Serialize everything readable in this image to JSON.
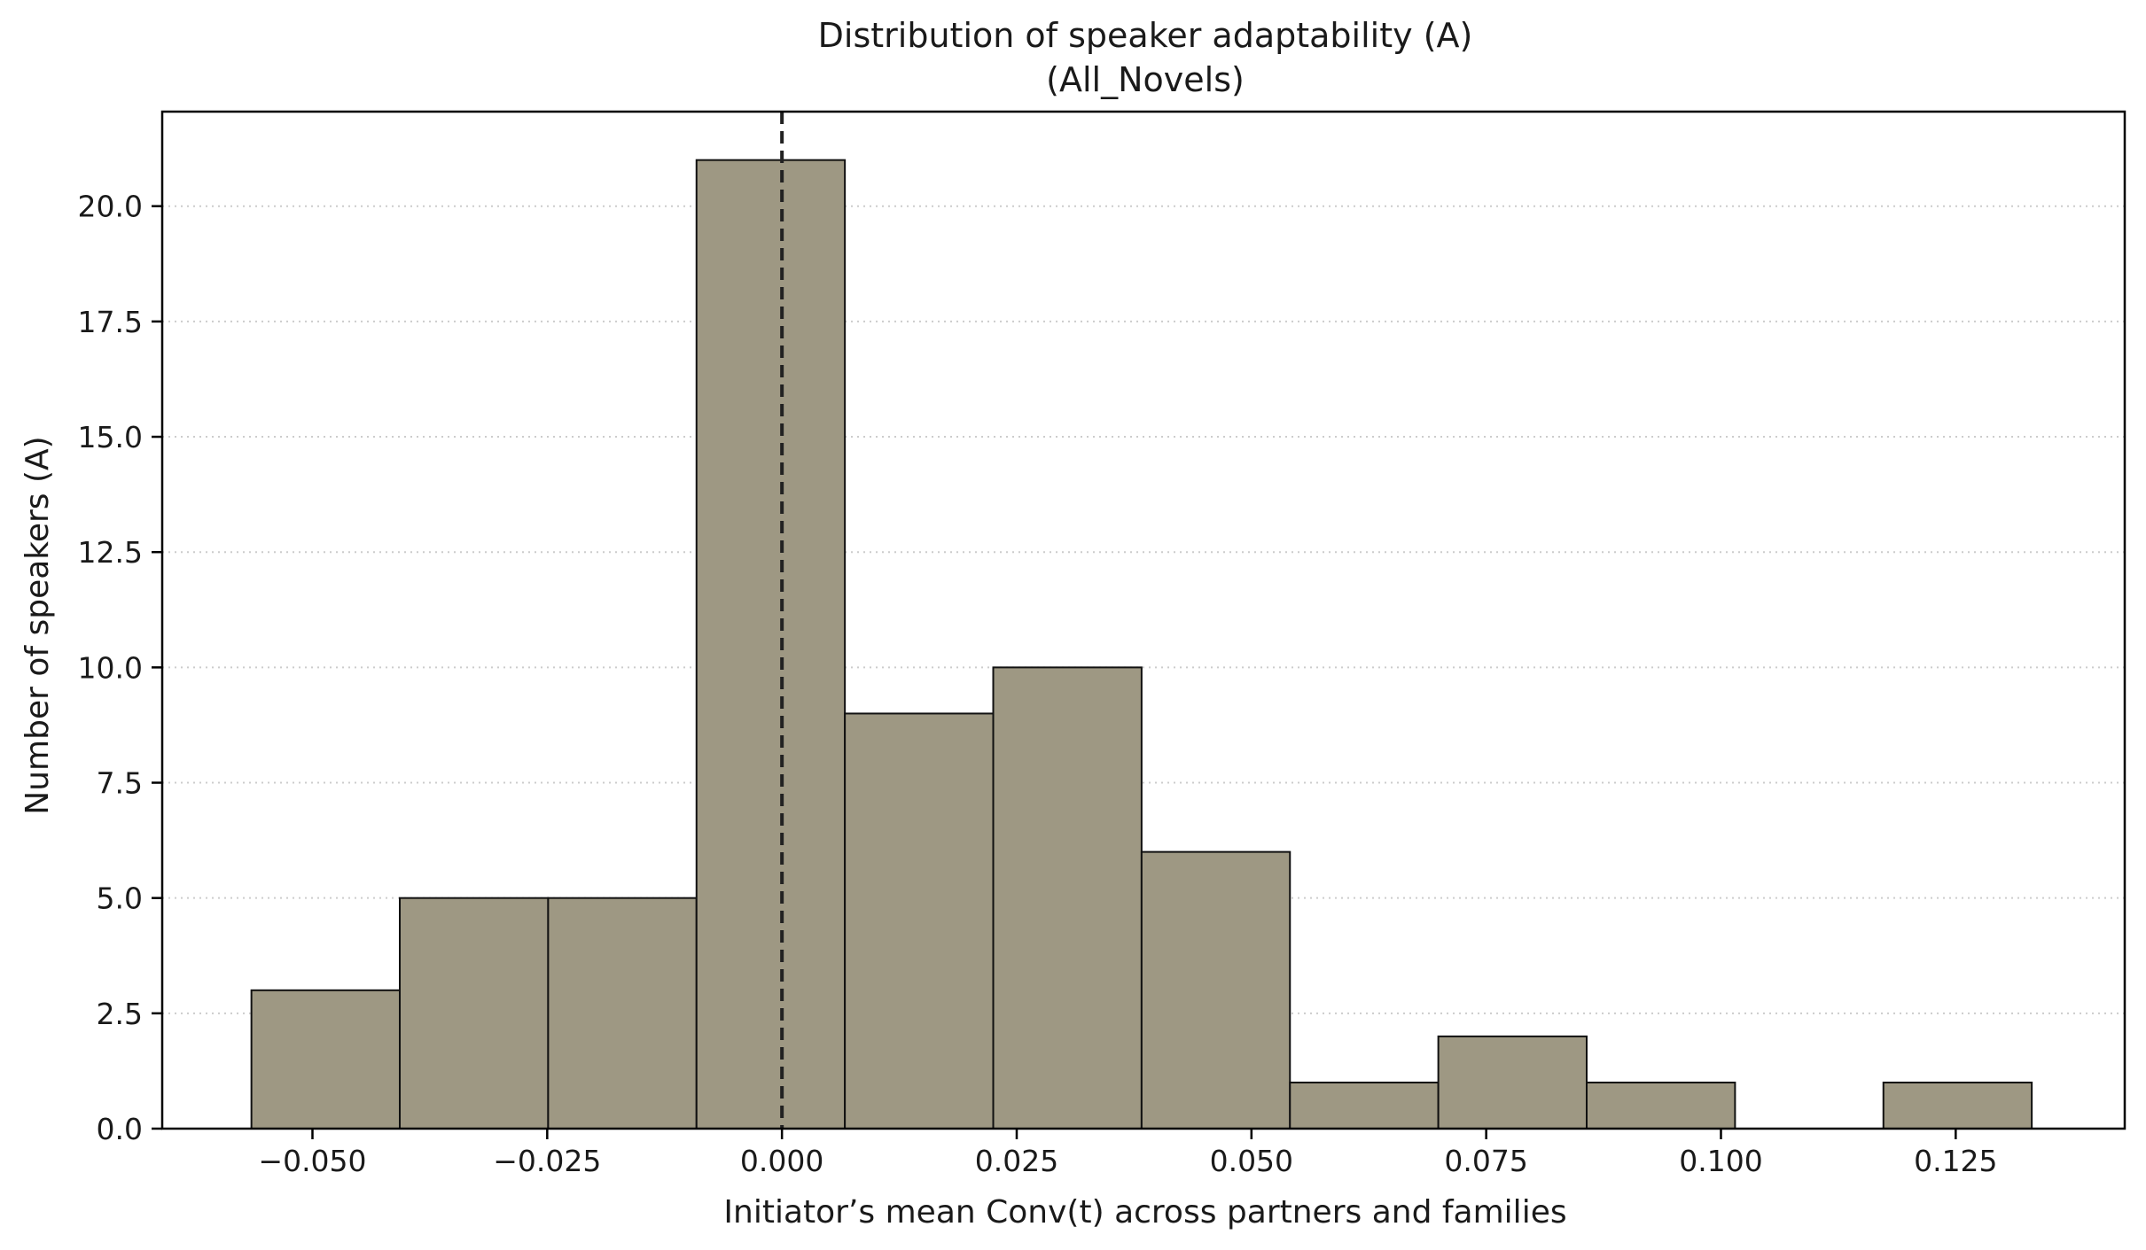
{
  "chart_data": {
    "type": "bar",
    "title": "Distribution of speaker adaptability (A)",
    "subtitle": "(All_Novels)",
    "xlabel": "Initiator’s mean Conv(t) across partners and families",
    "ylabel": "Number of speakers (A)",
    "xlim": [
      -0.066,
      0.143
    ],
    "ylim": [
      0,
      22.05
    ],
    "x_ticks": [
      -0.05,
      -0.025,
      0.0,
      0.025,
      0.05,
      0.075,
      0.1,
      0.125
    ],
    "x_tick_labels": [
      "−0.050",
      "−0.025",
      "0.000",
      "0.025",
      "0.050",
      "0.075",
      "0.100",
      "0.125"
    ],
    "y_ticks": [
      0,
      2.5,
      5,
      7.5,
      10,
      12.5,
      15,
      17.5,
      20
    ],
    "y_tick_labels": [
      "0.0",
      "2.5",
      "5.0",
      "7.5",
      "10.0",
      "12.5",
      "15.0",
      "17.5",
      "20.0"
    ],
    "bin_edges": [
      -0.0565,
      -0.0407,
      -0.0249,
      -0.0091,
      0.0067,
      0.0225,
      0.0383,
      0.0541,
      0.0699,
      0.0857,
      0.1015,
      0.1173,
      0.1331
    ],
    "counts": [
      3,
      5,
      5,
      21,
      9,
      10,
      6,
      1,
      2,
      1,
      0,
      1
    ],
    "reference_line": {
      "x": 0.0,
      "style": "dashed"
    },
    "grid": "y-dotted",
    "colors": {
      "bar_fill": "#9e9883",
      "bar_edge": "#111111",
      "grid": "#cccccc",
      "axis": "#000000",
      "ref_line": "#222222"
    }
  }
}
